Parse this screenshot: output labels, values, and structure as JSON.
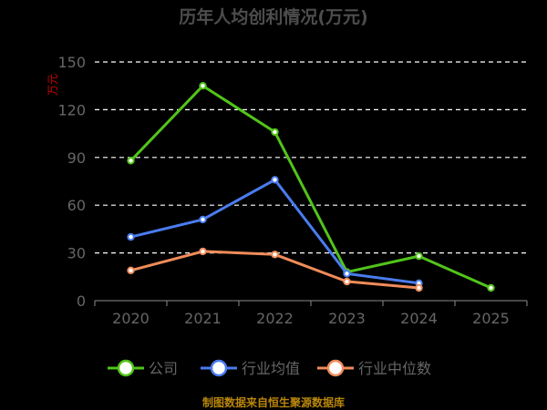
{
  "chart_data": {
    "type": "line",
    "title": "历年人均创利情况(万元)",
    "ylabel": "万元",
    "xlabel": "",
    "categories": [
      "2020",
      "2021",
      "2022",
      "2023",
      "2024",
      "2025"
    ],
    "ylim": [
      0,
      150
    ],
    "yticks": [
      0,
      30,
      60,
      90,
      120,
      150
    ],
    "grid": true,
    "legend_position": "bottom",
    "series": [
      {
        "name": "公司",
        "color": "#52c41a",
        "values": [
          88,
          135,
          106,
          18,
          28,
          8
        ]
      },
      {
        "name": "行业均值",
        "color": "#4a7cf0",
        "values": [
          40,
          51,
          76,
          17,
          11,
          null
        ]
      },
      {
        "name": "行业中位数",
        "color": "#f08c5a",
        "values": [
          19,
          31,
          29,
          12,
          8,
          null
        ]
      }
    ]
  },
  "source_text": "制图数据来自恒生聚源数据库"
}
